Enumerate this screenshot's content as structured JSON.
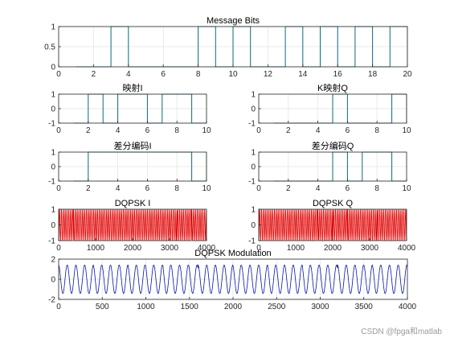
{
  "watermark": "CSDN @fpga和matlab",
  "colors": {
    "digital": "#0c6a86",
    "dqpsk_i": "#e00000",
    "dqpsk_q": "#e00000",
    "modulation": "#0018a8",
    "axis": "#262626",
    "grid": "#e2e2e2"
  },
  "chart_data": [
    {
      "id": "message-bits",
      "type": "line",
      "step": true,
      "title": "Message Bits",
      "xlim": [
        0,
        20
      ],
      "ylim": [
        0,
        1
      ],
      "xticks": [
        0,
        2,
        4,
        6,
        8,
        10,
        12,
        14,
        16,
        18,
        20
      ],
      "yticks": [
        0,
        0.5,
        1
      ],
      "ytick_labels": [
        "0",
        "0.5",
        "1"
      ],
      "grid": true,
      "series": [
        {
          "x": [
            1,
            2,
            3,
            4,
            5,
            6,
            7,
            8,
            9,
            10,
            11,
            12,
            13,
            14,
            15,
            16,
            17,
            18,
            19,
            20
          ],
          "values": [
            0,
            0,
            1,
            0,
            0,
            0,
            0,
            1,
            0,
            1,
            0,
            0,
            1,
            0,
            1,
            0,
            1,
            0,
            1,
            0
          ]
        }
      ]
    },
    {
      "id": "map-i",
      "type": "line",
      "step": true,
      "title": "映射I",
      "xlim": [
        0,
        10
      ],
      "ylim": [
        -1,
        1
      ],
      "xticks": [
        0,
        2,
        4,
        6,
        8,
        10
      ],
      "yticks": [
        -1,
        0,
        1
      ],
      "ytick_labels": [
        "-1",
        "0",
        "1"
      ],
      "grid": true,
      "series": [
        {
          "x": [
            1,
            2,
            3,
            4,
            5,
            6,
            7,
            8,
            9,
            10
          ],
          "values": [
            -1,
            1,
            -1,
            1,
            1,
            -1,
            1,
            1,
            -1,
            -1
          ]
        }
      ]
    },
    {
      "id": "map-q",
      "type": "line",
      "step": true,
      "title": "K映射Q",
      "xlim": [
        0,
        10
      ],
      "ylim": [
        -1,
        1
      ],
      "xticks": [
        0,
        2,
        4,
        6,
        8,
        10
      ],
      "yticks": [
        -1,
        0,
        1
      ],
      "ytick_labels": [
        "-1",
        "0",
        "1"
      ],
      "grid": true,
      "series": [
        {
          "x": [
            1,
            2,
            3,
            4,
            5,
            6,
            7,
            8,
            9,
            10
          ],
          "values": [
            -1,
            -1,
            -1,
            -1,
            1,
            -1,
            -1,
            -1,
            1,
            -1
          ]
        }
      ]
    },
    {
      "id": "diff-i",
      "type": "line",
      "step": true,
      "title": "差分编码I",
      "xlim": [
        0,
        10
      ],
      "ylim": [
        -1,
        1
      ],
      "xticks": [
        0,
        2,
        4,
        6,
        8,
        10
      ],
      "yticks": [
        -1,
        0,
        1
      ],
      "ytick_labels": [
        "-1",
        "0",
        "1"
      ],
      "grid": true,
      "series": [
        {
          "x": [
            1,
            2,
            3,
            4,
            5,
            6,
            7,
            8,
            9,
            10
          ],
          "values": [
            -1,
            1,
            1,
            1,
            1,
            1,
            1,
            1,
            -1,
            1
          ]
        }
      ]
    },
    {
      "id": "diff-q",
      "type": "line",
      "step": true,
      "title": "差分编码Q",
      "xlim": [
        0,
        10
      ],
      "ylim": [
        -1,
        1
      ],
      "xticks": [
        0,
        2,
        4,
        6,
        8,
        10
      ],
      "yticks": [
        -1,
        0,
        1
      ],
      "ytick_labels": [
        "-1",
        "0",
        "1"
      ],
      "grid": true,
      "series": [
        {
          "x": [
            1,
            2,
            3,
            4,
            5,
            6,
            7,
            8,
            9,
            10
          ],
          "values": [
            -1,
            -1,
            -1,
            -1,
            1,
            -1,
            1,
            1,
            -1,
            -1
          ]
        }
      ]
    },
    {
      "id": "dqpsk-i",
      "type": "line",
      "title": "DQPSK I",
      "xlim": [
        0,
        4000
      ],
      "ylim": [
        -1,
        1
      ],
      "xticks": [
        0,
        1000,
        2000,
        3000,
        4000
      ],
      "yticks": [
        -1,
        0,
        1
      ],
      "ytick_labels": [
        "-1",
        "0",
        "1"
      ],
      "grid": true,
      "signal": {
        "samples": 4000,
        "cycles": 80,
        "amplitude": 1,
        "bit_signs": [
          -1,
          1,
          1,
          1,
          1,
          1,
          1,
          1,
          -1,
          1
        ]
      }
    },
    {
      "id": "dqpsk-q",
      "type": "line",
      "title": "DQPSK Q",
      "xlim": [
        0,
        4000
      ],
      "ylim": [
        -1,
        1
      ],
      "xticks": [
        0,
        1000,
        2000,
        3000,
        4000
      ],
      "yticks": [
        -1,
        0,
        1
      ],
      "ytick_labels": [
        "-1",
        "0",
        "1"
      ],
      "grid": true,
      "signal": {
        "samples": 4000,
        "cycles": 80,
        "amplitude": 1,
        "bit_signs": [
          -1,
          -1,
          -1,
          -1,
          1,
          -1,
          1,
          1,
          -1,
          -1
        ]
      }
    },
    {
      "id": "dqpsk-mod",
      "type": "line",
      "title": "DQPSK Modulation",
      "xlim": [
        0,
        4000
      ],
      "ylim": [
        -2,
        2
      ],
      "xticks": [
        0,
        500,
        1000,
        1500,
        2000,
        2500,
        3000,
        3500,
        4000
      ],
      "yticks": [
        -2,
        0,
        2
      ],
      "ytick_labels": [
        "-2",
        "0",
        "2"
      ],
      "grid": true,
      "signal": {
        "samples": 4000,
        "cycles": 40,
        "amplitude": 1.4142
      }
    }
  ]
}
